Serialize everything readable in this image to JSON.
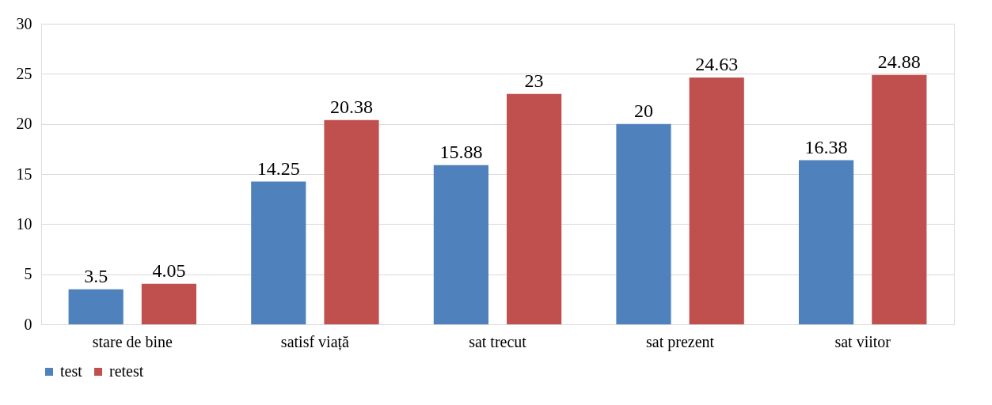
{
  "chart_data": {
    "type": "bar",
    "categories": [
      "stare de bine",
      "satisf viață",
      "sat trecut",
      "sat prezent",
      "sat viitor"
    ],
    "series": [
      {
        "name": "test",
        "color": "#4f81bd",
        "values": [
          3.5,
          14.25,
          15.88,
          20,
          16.38
        ]
      },
      {
        "name": "retest",
        "color": "#c0504d",
        "values": [
          4.05,
          20.38,
          23,
          24.63,
          24.88
        ]
      }
    ],
    "ylim": [
      0,
      30
    ],
    "yticks": [
      0,
      5,
      10,
      15,
      20,
      25,
      30
    ],
    "grid": "y",
    "legend": "bottom",
    "data_labels": true
  }
}
